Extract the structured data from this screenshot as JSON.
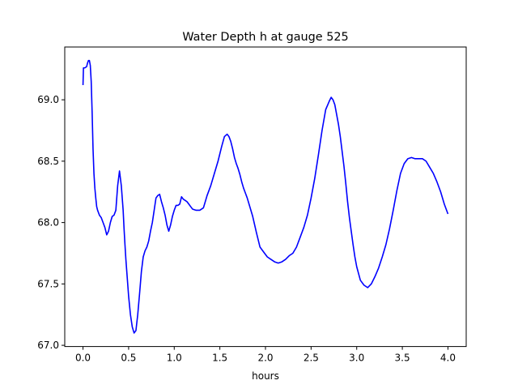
{
  "chart_data": {
    "type": "line",
    "title": "Water Depth h at gauge 525",
    "xlabel": "hours",
    "ylabel": "",
    "xlim": [
      -0.2,
      4.2
    ],
    "ylim": [
      66.99,
      69.43
    ],
    "xticks": [
      0.0,
      0.5,
      1.0,
      1.5,
      2.0,
      2.5,
      3.0,
      3.5,
      4.0
    ],
    "xtick_labels": [
      "0.0",
      "0.5",
      "1.0",
      "1.5",
      "2.0",
      "2.5",
      "3.0",
      "3.5",
      "4.0"
    ],
    "yticks": [
      67.0,
      67.5,
      68.0,
      68.5,
      69.0
    ],
    "ytick_labels": [
      "67.0",
      "67.5",
      "68.0",
      "68.5",
      "69.0"
    ],
    "grid": false,
    "series": [
      {
        "color": "#0000ff",
        "x": [
          0.0,
          0.005,
          0.02,
          0.04,
          0.05,
          0.06,
          0.07,
          0.08,
          0.09,
          0.1,
          0.11,
          0.12,
          0.13,
          0.14,
          0.15,
          0.16,
          0.18,
          0.2,
          0.22,
          0.24,
          0.26,
          0.28,
          0.3,
          0.32,
          0.34,
          0.36,
          0.38,
          0.4,
          0.42,
          0.44,
          0.45,
          0.46,
          0.47,
          0.48,
          0.5,
          0.52,
          0.54,
          0.56,
          0.58,
          0.6,
          0.62,
          0.64,
          0.66,
          0.68,
          0.7,
          0.72,
          0.74,
          0.76,
          0.78,
          0.8,
          0.82,
          0.84,
          0.86,
          0.88,
          0.9,
          0.91,
          0.92,
          0.94,
          0.96,
          0.98,
          1.0,
          1.02,
          1.04,
          1.06,
          1.08,
          1.1,
          1.12,
          1.14,
          1.16,
          1.18,
          1.2,
          1.24,
          1.28,
          1.32,
          1.36,
          1.4,
          1.44,
          1.48,
          1.52,
          1.55,
          1.58,
          1.6,
          1.62,
          1.64,
          1.66,
          1.68,
          1.7,
          1.72,
          1.74,
          1.76,
          1.78,
          1.8,
          1.82,
          1.86,
          1.9,
          1.94,
          1.98,
          2.02,
          2.06,
          2.1,
          2.14,
          2.18,
          2.22,
          2.26,
          2.3,
          2.34,
          2.38,
          2.42,
          2.46,
          2.5,
          2.54,
          2.58,
          2.62,
          2.66,
          2.7,
          2.72,
          2.74,
          2.76,
          2.78,
          2.8,
          2.82,
          2.84,
          2.86,
          2.88,
          2.9,
          2.92,
          2.94,
          2.96,
          2.98,
          3.0,
          3.04,
          3.08,
          3.12,
          3.16,
          3.2,
          3.24,
          3.28,
          3.32,
          3.36,
          3.4,
          3.44,
          3.48,
          3.52,
          3.56,
          3.6,
          3.64,
          3.68,
          3.72,
          3.76,
          3.8,
          3.84,
          3.88,
          3.92,
          3.96,
          4.0
        ],
        "y": [
          69.12,
          69.26,
          69.26,
          69.27,
          69.3,
          69.32,
          69.32,
          69.28,
          69.15,
          68.9,
          68.6,
          68.4,
          68.28,
          68.2,
          68.13,
          68.1,
          68.06,
          68.04,
          68.0,
          67.96,
          67.9,
          67.93,
          68.0,
          68.05,
          68.06,
          68.1,
          68.3,
          68.42,
          68.3,
          68.1,
          67.95,
          67.82,
          67.7,
          67.6,
          67.4,
          67.25,
          67.15,
          67.1,
          67.12,
          67.25,
          67.42,
          67.6,
          67.72,
          67.77,
          67.8,
          67.85,
          67.93,
          68.0,
          68.1,
          68.2,
          68.22,
          68.23,
          68.17,
          68.12,
          68.06,
          68.02,
          67.98,
          67.93,
          67.98,
          68.05,
          68.1,
          68.14,
          68.14,
          68.15,
          68.21,
          68.19,
          68.18,
          68.17,
          68.15,
          68.13,
          68.11,
          68.1,
          68.1,
          68.12,
          68.22,
          68.3,
          68.4,
          68.5,
          68.62,
          68.7,
          68.72,
          68.7,
          68.66,
          68.6,
          68.53,
          68.48,
          68.44,
          68.39,
          68.33,
          68.28,
          68.24,
          68.2,
          68.15,
          68.05,
          67.92,
          67.8,
          67.76,
          67.72,
          67.7,
          67.68,
          67.67,
          67.68,
          67.7,
          67.73,
          67.75,
          67.8,
          67.88,
          67.96,
          68.06,
          68.2,
          68.36,
          68.55,
          68.75,
          68.92,
          68.99,
          69.02,
          69.0,
          68.96,
          68.88,
          68.8,
          68.7,
          68.58,
          68.46,
          68.32,
          68.17,
          68.04,
          67.93,
          67.82,
          67.72,
          67.64,
          67.53,
          67.49,
          67.47,
          67.5,
          67.56,
          67.63,
          67.72,
          67.82,
          67.95,
          68.1,
          68.26,
          68.4,
          68.48,
          68.52,
          68.53,
          68.52,
          68.52,
          68.52,
          68.5,
          68.45,
          68.4,
          68.33,
          68.25,
          68.15,
          68.07
        ]
      }
    ]
  }
}
